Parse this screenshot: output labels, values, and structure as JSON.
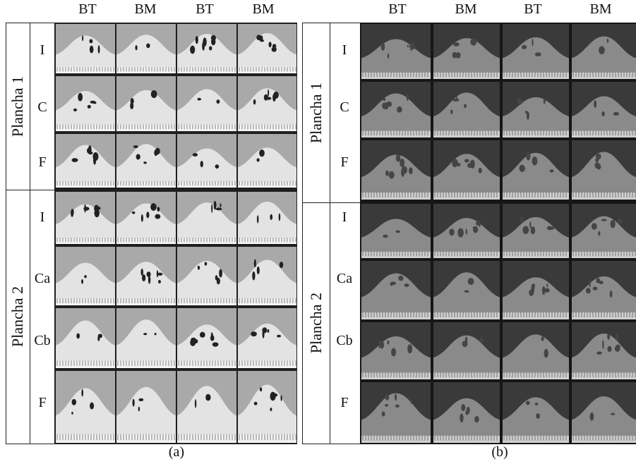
{
  "panel_a": {
    "columns": [
      "BT",
      "BM",
      "BT",
      "BM"
    ],
    "groups": [
      {
        "label": "Plancha 1",
        "rows": [
          "I",
          "C",
          "F"
        ]
      },
      {
        "label": "Plancha 2",
        "rows": [
          "I",
          "Ca",
          "Cb",
          "F"
        ]
      }
    ],
    "caption": "(a)"
  },
  "panel_b": {
    "columns": [
      "BT",
      "BM",
      "BT",
      "BM"
    ],
    "groups": [
      {
        "label": "Plancha 1",
        "rows": [
          "I",
          "C",
          "F"
        ]
      },
      {
        "label": "Plancha 2",
        "rows": [
          "I",
          "Ca",
          "Cb",
          "F"
        ]
      }
    ],
    "caption": "(b)"
  }
}
